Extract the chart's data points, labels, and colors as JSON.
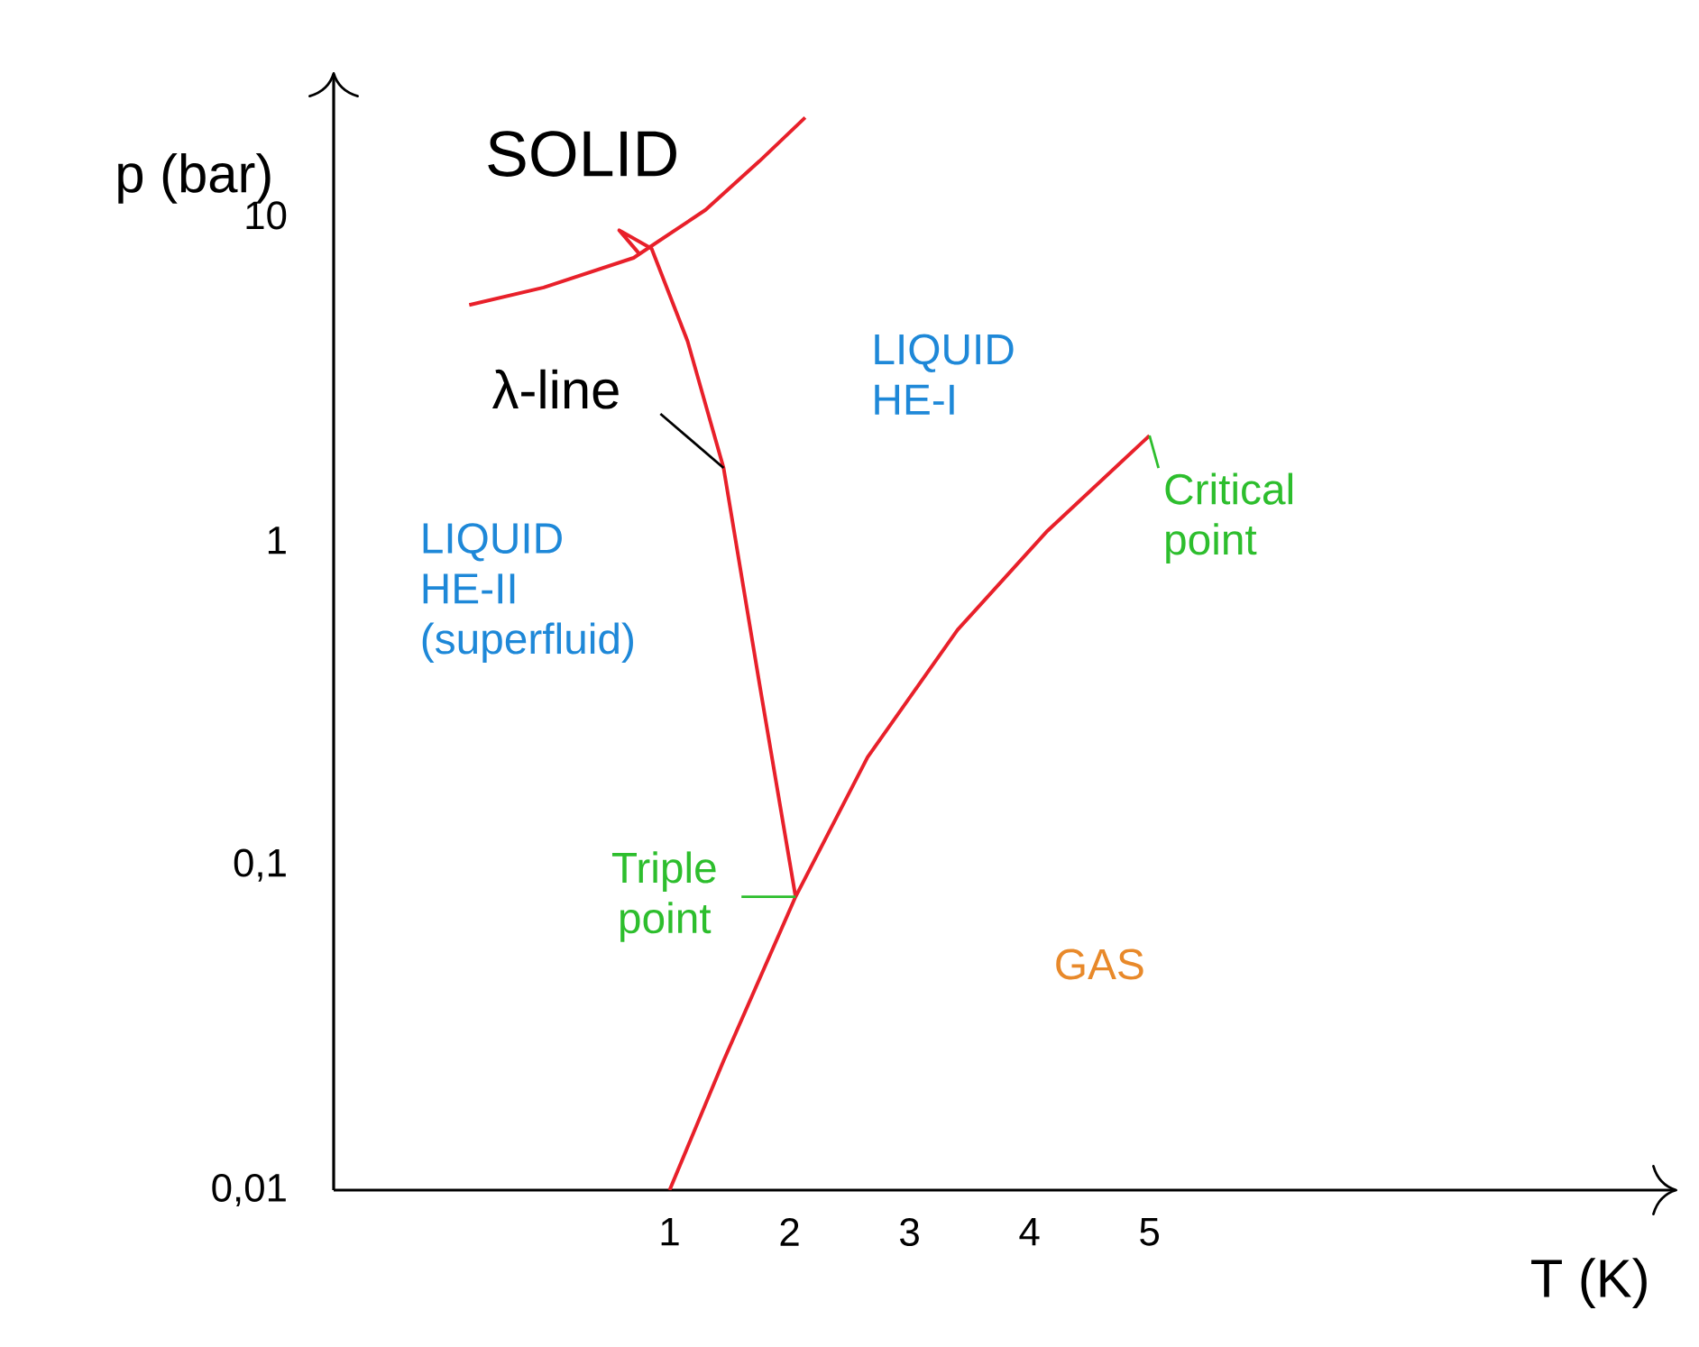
{
  "chart_data": {
    "type": "line",
    "xlabel": "T (K)",
    "ylabel": "p (bar)",
    "log": "y",
    "xlim": [
      -1.8,
      9.4
    ],
    "ylim": [
      0.01,
      27.6
    ],
    "xticks": [
      1,
      2,
      3,
      4,
      5
    ],
    "yticks": [
      {
        "value": 0.01,
        "label": "0,01"
      },
      {
        "value": 0.1,
        "label": "0,1"
      },
      {
        "value": 1,
        "label": "1"
      },
      {
        "value": 10,
        "label": "10"
      }
    ],
    "series": [
      {
        "color": "#e8202a",
        "x": [
          -0.67,
          -0.05,
          0.7,
          1.3,
          1.75,
          2.13
        ],
        "values": [
          5.3,
          6.0,
          7.4,
          10.4,
          14.7,
          20
        ]
      },
      {
        "color": "#e8202a",
        "x": [
          2.05,
          1.75,
          1.45,
          1.15,
          0.85,
          0.58,
          0.75
        ],
        "values": [
          0.08,
          0.36,
          1.67,
          4.1,
          7.9,
          9.0,
          7.6
        ]
      },
      {
        "color": "#e8202a",
        "x": [
          1.0,
          1.45,
          2.05,
          2.65,
          3.4,
          4.15,
          5.0
        ],
        "values": [
          0.01,
          0.025,
          0.08,
          0.215,
          0.53,
          1.07,
          2.1
        ]
      }
    ],
    "annotations": [
      "SOLID",
      {
        "text": "λ-line",
        "x": 1.45,
        "y": 1.67
      },
      "LIQUID HE-I",
      "LIQUID HE-II (superfluid)",
      {
        "text": "Critical point",
        "x": 5.0,
        "y": 2.1
      },
      {
        "text": "Triple point",
        "x": 2.05,
        "y": 0.08
      },
      "GAS"
    ]
  }
}
